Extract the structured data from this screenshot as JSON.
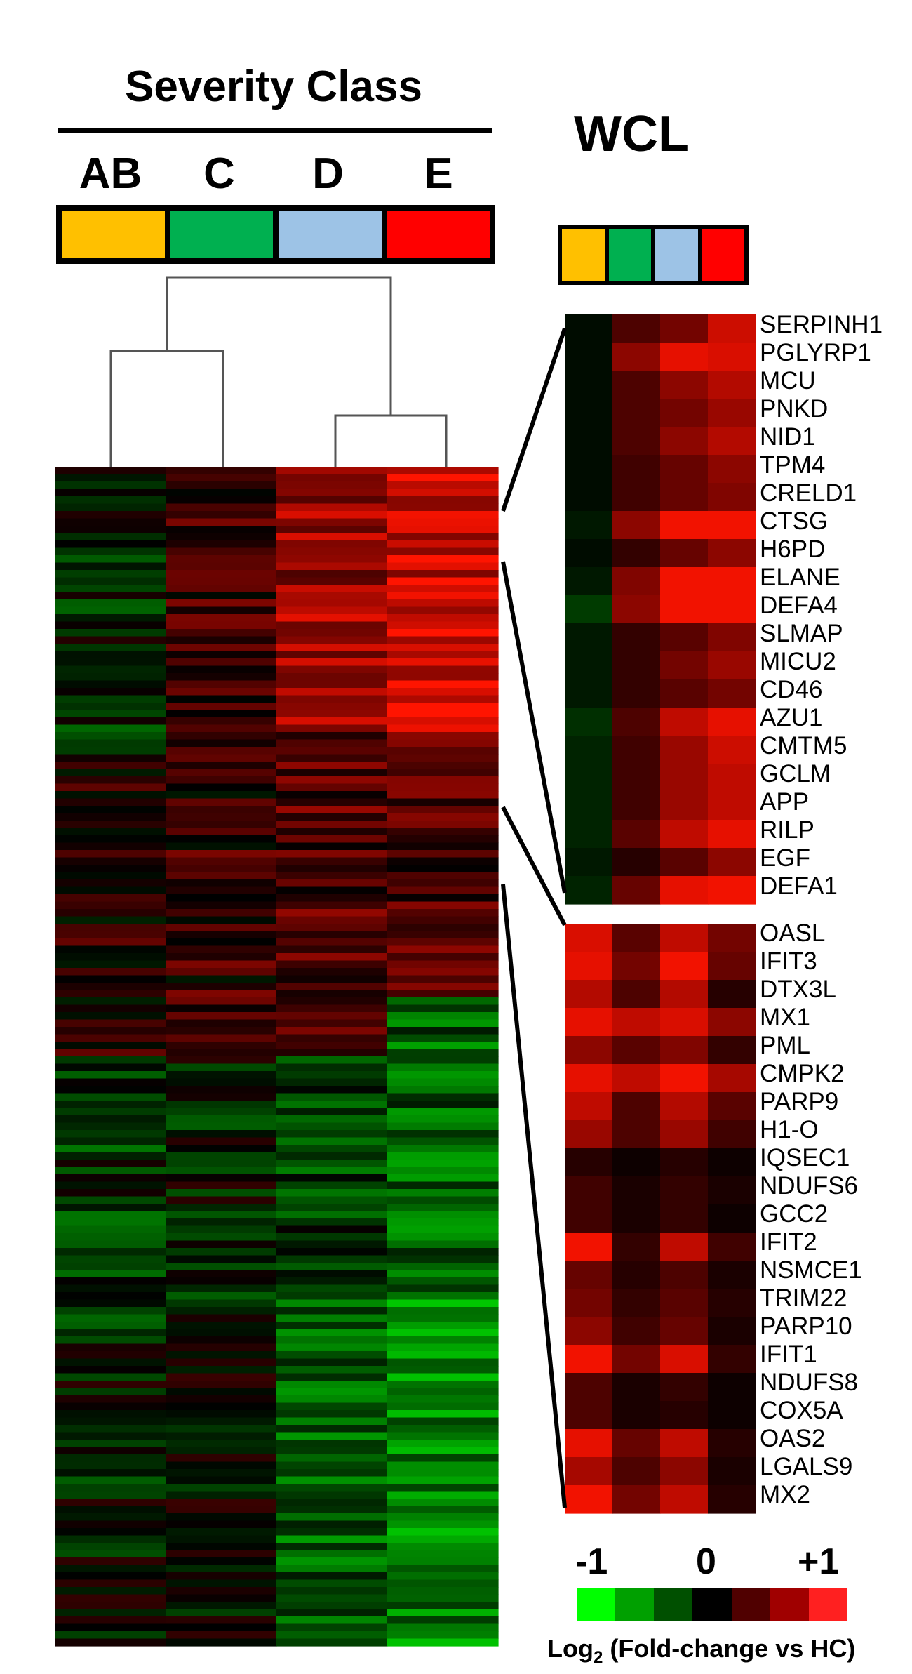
{
  "header": {
    "severity_title": "Severity Class",
    "wcl_title": "WCL"
  },
  "classes": [
    {
      "label": "AB",
      "color": "#FFC000"
    },
    {
      "label": "C",
      "color": "#00B050"
    },
    {
      "label": "D",
      "color": "#9DC3E6"
    },
    {
      "label": "E",
      "color": "#FF0000"
    }
  ],
  "colorbar": {
    "min_label": "-1",
    "mid_label": "0",
    "max_label": "+1",
    "title_main": "Log",
    "title_sub": "2",
    "title_rest": " (Fold-change vs HC)",
    "stops": [
      "#00FF00",
      "#00A000",
      "#005000",
      "#000000",
      "#500000",
      "#A00000",
      "#FF2020"
    ]
  },
  "chart_data": {
    "type": "heatmap",
    "value_range": [
      -1,
      1
    ],
    "columns": [
      "AB",
      "C",
      "D",
      "E"
    ],
    "cluster_tree": "((AB,C),(D,E))",
    "top_panel": {
      "genes": [
        "SERPINH1",
        "PGLYRP1",
        "MCU",
        "PNKD",
        "NID1",
        "TPM4",
        "CRELD1",
        "CTSG",
        "H6PD",
        "ELANE",
        "DEFA4",
        "SLMAP",
        "MICU2",
        "CD46",
        "AZU1",
        "CMTM5",
        "GCLM",
        "APP",
        "RILP",
        "EGF",
        "DEFA1"
      ],
      "values": [
        [
          -0.05,
          0.3,
          0.45,
          0.8
        ],
        [
          -0.05,
          0.55,
          0.9,
          0.85
        ],
        [
          -0.05,
          0.3,
          0.55,
          0.7
        ],
        [
          -0.05,
          0.3,
          0.45,
          0.6
        ],
        [
          -0.05,
          0.3,
          0.55,
          0.7
        ],
        [
          -0.05,
          0.25,
          0.4,
          0.55
        ],
        [
          -0.05,
          0.25,
          0.4,
          0.5
        ],
        [
          -0.1,
          0.55,
          0.95,
          0.95
        ],
        [
          -0.05,
          0.2,
          0.4,
          0.55
        ],
        [
          -0.1,
          0.5,
          0.95,
          0.95
        ],
        [
          -0.25,
          0.55,
          0.95,
          0.95
        ],
        [
          -0.1,
          0.2,
          0.35,
          0.5
        ],
        [
          -0.1,
          0.2,
          0.45,
          0.6
        ],
        [
          -0.1,
          0.2,
          0.35,
          0.45
        ],
        [
          -0.2,
          0.3,
          0.75,
          0.9
        ],
        [
          -0.15,
          0.25,
          0.6,
          0.8
        ],
        [
          -0.15,
          0.25,
          0.6,
          0.75
        ],
        [
          -0.15,
          0.25,
          0.6,
          0.75
        ],
        [
          -0.15,
          0.35,
          0.75,
          0.9
        ],
        [
          -0.1,
          0.15,
          0.35,
          0.55
        ],
        [
          -0.15,
          0.4,
          0.9,
          0.95
        ]
      ]
    },
    "bottom_panel": {
      "genes": [
        "OASL",
        "IFIT3",
        "DTX3L",
        "MX1",
        "PML",
        "CMPK2",
        "PARP9",
        "H1-O",
        "IQSEC1",
        "NDUFS6",
        "GCC2",
        "IFIT2",
        "NSMCE1",
        "TRIM22",
        "PARP10",
        "IFIT1",
        "NDUFS8",
        "COX5A",
        "OAS2",
        "LGALS9",
        "MX2"
      ],
      "values": [
        [
          0.85,
          0.35,
          0.75,
          0.45
        ],
        [
          0.9,
          0.45,
          0.95,
          0.4
        ],
        [
          0.7,
          0.3,
          0.7,
          0.15
        ],
        [
          0.9,
          0.75,
          0.85,
          0.55
        ],
        [
          0.55,
          0.35,
          0.5,
          0.2
        ],
        [
          0.9,
          0.75,
          0.95,
          0.65
        ],
        [
          0.75,
          0.3,
          0.7,
          0.35
        ],
        [
          0.6,
          0.3,
          0.6,
          0.25
        ],
        [
          0.15,
          0.05,
          0.15,
          0.05
        ],
        [
          0.25,
          0.1,
          0.2,
          0.1
        ],
        [
          0.25,
          0.1,
          0.2,
          0.05
        ],
        [
          0.95,
          0.2,
          0.75,
          0.25
        ],
        [
          0.4,
          0.15,
          0.3,
          0.1
        ],
        [
          0.45,
          0.2,
          0.35,
          0.15
        ],
        [
          0.55,
          0.25,
          0.4,
          0.1
        ],
        [
          0.95,
          0.45,
          0.85,
          0.2
        ],
        [
          0.3,
          0.1,
          0.2,
          0.05
        ],
        [
          0.3,
          0.1,
          0.15,
          0.05
        ],
        [
          0.9,
          0.4,
          0.75,
          0.15
        ],
        [
          0.65,
          0.3,
          0.55,
          0.1
        ],
        [
          0.95,
          0.45,
          0.75,
          0.15
        ]
      ]
    }
  }
}
